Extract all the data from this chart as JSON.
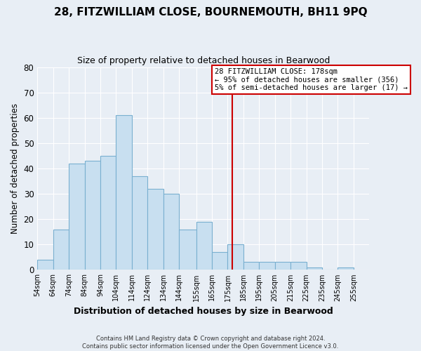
{
  "title": "28, FITZWILLIAM CLOSE, BOURNEMOUTH, BH11 9PQ",
  "subtitle": "Size of property relative to detached houses in Bearwood",
  "xlabel": "Distribution of detached houses by size in Bearwood",
  "ylabel": "Number of detached properties",
  "bar_color": "#c8dff0",
  "bar_edge_color": "#7ab0d0",
  "background_color": "#e8eef5",
  "grid_color": "#ffffff",
  "bins": [
    54,
    64,
    74,
    84,
    94,
    104,
    114,
    124,
    134,
    144,
    155,
    165,
    175,
    185,
    195,
    205,
    215,
    225,
    235,
    245,
    255
  ],
  "counts": [
    4,
    16,
    42,
    43,
    45,
    61,
    37,
    32,
    30,
    16,
    19,
    7,
    10,
    3,
    3,
    3,
    3,
    1,
    0,
    1
  ],
  "tick_labels": [
    "54sqm",
    "64sqm",
    "74sqm",
    "84sqm",
    "94sqm",
    "104sqm",
    "114sqm",
    "124sqm",
    "134sqm",
    "144sqm",
    "155sqm",
    "165sqm",
    "175sqm",
    "185sqm",
    "195sqm",
    "205sqm",
    "215sqm",
    "225sqm",
    "235sqm",
    "245sqm",
    "255sqm"
  ],
  "vline_x": 178,
  "vline_color": "#cc0000",
  "annotation_title": "28 FITZWILLIAM CLOSE: 178sqm",
  "annotation_line1": "← 95% of detached houses are smaller (356)",
  "annotation_line2": "5% of semi-detached houses are larger (17) →",
  "ylim": [
    0,
    80
  ],
  "yticks": [
    0,
    10,
    20,
    30,
    40,
    50,
    60,
    70,
    80
  ],
  "footer_line1": "Contains HM Land Registry data © Crown copyright and database right 2024.",
  "footer_line2": "Contains public sector information licensed under the Open Government Licence v3.0."
}
